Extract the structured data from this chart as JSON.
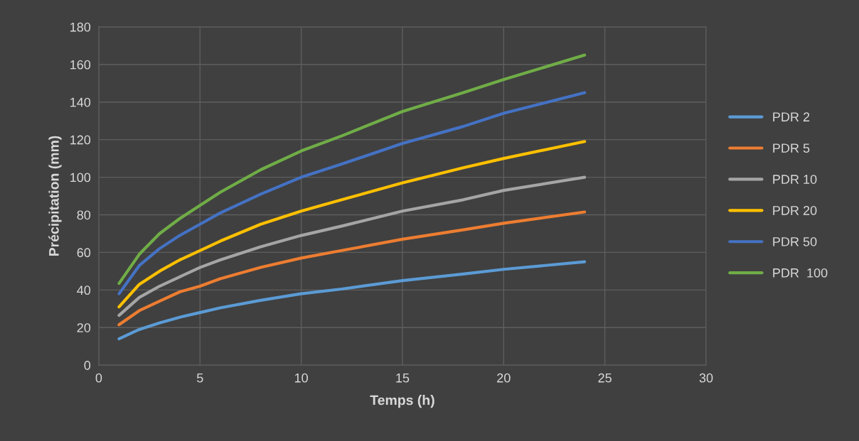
{
  "chart_data": {
    "type": "line",
    "xlabel": "Temps (h)",
    "ylabel": "Précipitation (mm)",
    "x": [
      1,
      2,
      3,
      4,
      5,
      6,
      8,
      10,
      12,
      15,
      18,
      20,
      24
    ],
    "series": [
      {
        "name": "PDR 2",
        "color": "#5b9bd5",
        "values": [
          14,
          19,
          22.5,
          25.5,
          28,
          30.5,
          34.5,
          38,
          40.5,
          45,
          48.5,
          51,
          55
        ]
      },
      {
        "name": "PDR 5",
        "color": "#ed7d31",
        "values": [
          21.5,
          29,
          34,
          39,
          42,
          46,
          52,
          57,
          61,
          67,
          72,
          75.5,
          81.5
        ]
      },
      {
        "name": "PDR 10",
        "color": "#a5a5a5",
        "values": [
          26.5,
          36,
          42,
          47,
          52,
          56,
          63,
          69,
          74,
          82,
          88,
          93,
          100
        ]
      },
      {
        "name": "PDR 20",
        "color": "#ffc000",
        "values": [
          31,
          43,
          50,
          56,
          61,
          66,
          75,
          82,
          88,
          97,
          105,
          110,
          119
        ]
      },
      {
        "name": "PDR 50",
        "color": "#4472c4",
        "values": [
          38,
          53,
          62,
          69,
          75,
          81,
          91,
          100,
          107,
          118,
          127,
          134,
          145
        ]
      },
      {
        "name": "PDR  100",
        "color": "#70ad47",
        "values": [
          43.5,
          59,
          70,
          78,
          85,
          92,
          104,
          114,
          122,
          135,
          145,
          152,
          165
        ]
      }
    ],
    "xlim": [
      0,
      30
    ],
    "xticks": [
      0,
      5,
      10,
      15,
      20,
      25,
      30
    ],
    "ylim": [
      0,
      180
    ],
    "yticks": [
      0,
      20,
      40,
      60,
      80,
      100,
      120,
      140,
      160,
      180
    ],
    "grid": true,
    "legend": "right",
    "marker": "none",
    "line_style": "solid"
  }
}
